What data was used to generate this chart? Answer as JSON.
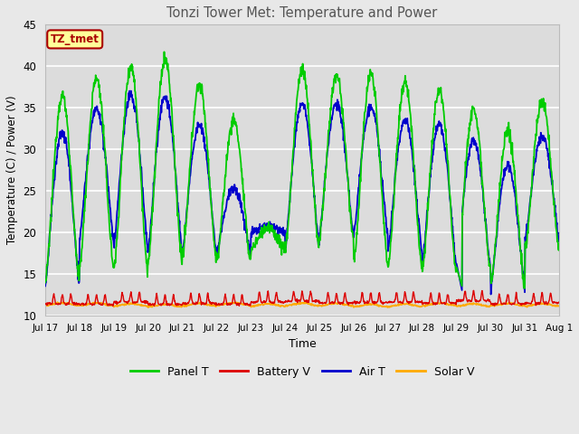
{
  "title": "Tonzi Tower Met: Temperature and Power",
  "xlabel": "Time",
  "ylabel": "Temperature (C) / Power (V)",
  "ylim": [
    10,
    45
  ],
  "xlim": [
    0,
    15
  ],
  "x_tick_labels": [
    "Jul 17",
    "Jul 18",
    "Jul 19",
    "Jul 20",
    "Jul 21",
    "Jul 22",
    "Jul 23",
    "Jul 24",
    "Jul 25",
    "Jul 26",
    "Jul 27",
    "Jul 28",
    "Jul 29",
    "Jul 30",
    "Jul 31",
    "Aug 1"
  ],
  "colors": {
    "panel_t": "#00cc00",
    "battery_v": "#dd0000",
    "air_t": "#0000cc",
    "solar_v": "#ffaa00"
  },
  "legend_labels": [
    "Panel T",
    "Battery V",
    "Air T",
    "Solar V"
  ],
  "tz_label": "TZ_tmet",
  "tz_label_color": "#aa0000",
  "tz_box_facecolor": "#ffff99",
  "tz_box_edgecolor": "#aa0000",
  "background_color": "#e8e8e8",
  "plot_bg_color": "#dcdcdc",
  "grid_color": "#ffffff",
  "n_days": 15,
  "points_per_day": 96
}
